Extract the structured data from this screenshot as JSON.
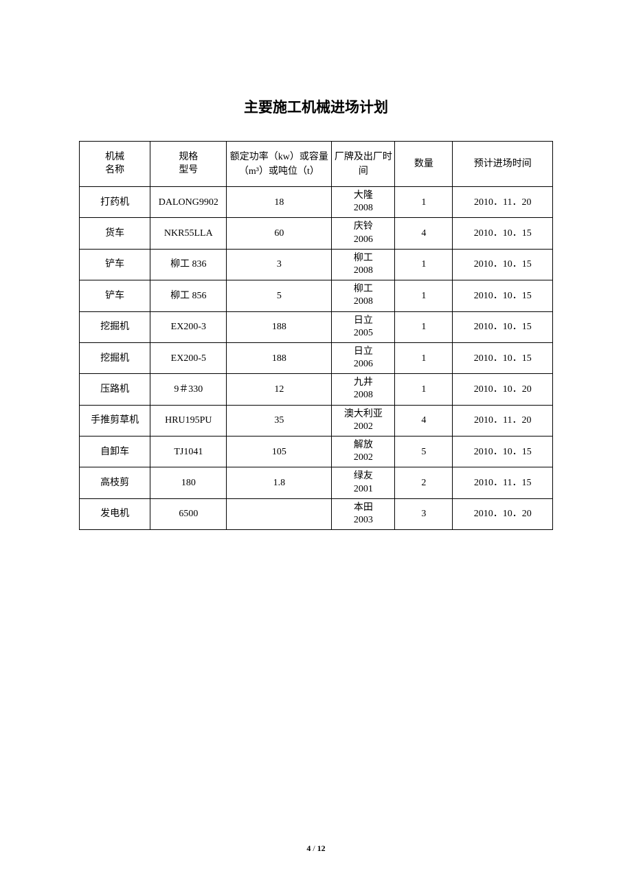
{
  "title": "主要施工机械进场计划",
  "headers": {
    "name": "机械\n名称",
    "model": "规格\n型号",
    "power": "额定功率（kw）或容量（m³）或吨位（t）",
    "brand": "厂牌及出厂时间",
    "qty": "数量",
    "date": "预计进场时间"
  },
  "rows": [
    {
      "name": "打药机",
      "model": "DALONG9902",
      "power": "18",
      "brand": "大隆\n2008",
      "qty": "1",
      "date": "2010．11．20"
    },
    {
      "name": "货车",
      "model": "NKR55LLA",
      "power": "60",
      "brand": "庆铃\n2006",
      "qty": "4",
      "date": "2010．10．15"
    },
    {
      "name": "铲车",
      "model": "柳工 836",
      "power": "3",
      "brand": "柳工\n2008",
      "qty": "1",
      "date": "2010．10．15"
    },
    {
      "name": "铲车",
      "model": "柳工 856",
      "power": "5",
      "brand": "柳工\n2008",
      "qty": "1",
      "date": "2010．10．15"
    },
    {
      "name": "挖掘机",
      "model": "EX200-3",
      "power": "188",
      "brand": "日立\n2005",
      "qty": "1",
      "date": "2010．10．15"
    },
    {
      "name": "挖掘机",
      "model": "EX200-5",
      "power": "188",
      "brand": "日立\n2006",
      "qty": "1",
      "date": "2010．10．15"
    },
    {
      "name": "压路机",
      "model": "9＃330",
      "power": "12",
      "brand": "九井\n2008",
      "qty": "1",
      "date": "2010．10．20"
    },
    {
      "name": "手推剪草机",
      "model": "HRU195PU",
      "power": "35",
      "brand": "澳大利亚\n2002",
      "qty": "4",
      "date": "2010．11．20"
    },
    {
      "name": "自卸车",
      "model": "TJ1041",
      "power": "105",
      "brand": "解放\n2002",
      "qty": "5",
      "date": "2010．10．15"
    },
    {
      "name": "高枝剪",
      "model": "180",
      "power": "1.8",
      "brand": "绿友\n2001",
      "qty": "2",
      "date": "2010．11．15"
    },
    {
      "name": "发电机",
      "model": "6500",
      "power": "",
      "brand": "本田\n2003",
      "qty": "3",
      "date": "2010．10．20"
    }
  ],
  "pageNumber": {
    "current": "4",
    "separator": " / ",
    "total": "12"
  }
}
